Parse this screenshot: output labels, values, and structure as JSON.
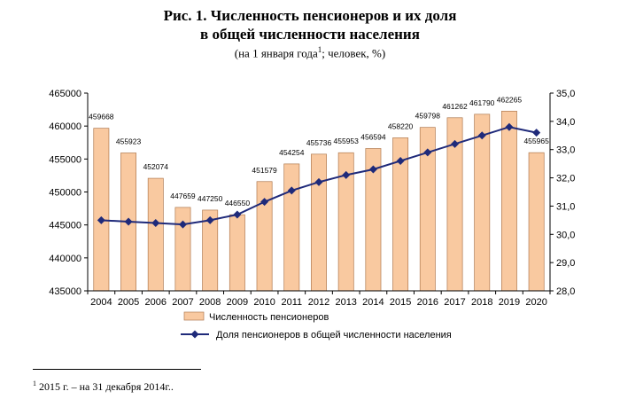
{
  "title_line1": "Рис. 1. Численность пенсионеров и их доля",
  "title_line2": "в общей численности населения",
  "subtitle_pre": "(на 1 января года",
  "subtitle_sup": "1",
  "subtitle_post": "; человек, %)",
  "footnote_sup": "1",
  "footnote_text": " 2015 г. – на 31 декабря 2014г..",
  "colors": {
    "bar_fill": "#f9c9a0",
    "bar_stroke": "#b07a50",
    "line": "#1f2a7a"
  },
  "chart_data": {
    "type": "bar+line",
    "categories": [
      "2004",
      "2005",
      "2006",
      "2007",
      "2008",
      "2009",
      "2010",
      "2011",
      "2012",
      "2013",
      "2014",
      "2015",
      "2016",
      "2017",
      "2018",
      "2019",
      "2020"
    ],
    "series": [
      {
        "name": "Численность пенсионеров",
        "type": "bar",
        "axis": "left",
        "values": [
          459668,
          455923,
          452074,
          447659,
          447250,
          446550,
          451579,
          454254,
          455736,
          455953,
          456594,
          458220,
          459798,
          461262,
          461790,
          462265,
          455965
        ],
        "labels": [
          "459668",
          "455923",
          "452074",
          "447659",
          "447250",
          "446550",
          "451579",
          "454254",
          "455736",
          "455953",
          "456594",
          "458220",
          "459798",
          "461262",
          "461790",
          "462265",
          "455965"
        ]
      },
      {
        "name": "Доля пенсионеров в общей численности населения",
        "type": "line",
        "axis": "right",
        "values": [
          30.5,
          30.45,
          30.4,
          30.35,
          30.5,
          30.7,
          31.15,
          31.55,
          31.85,
          32.1,
          32.3,
          32.6,
          32.9,
          33.2,
          33.5,
          33.8,
          33.6
        ]
      }
    ],
    "y_left": {
      "min": 435000,
      "max": 465000,
      "step": 5000,
      "ticks": [
        "435000",
        "440000",
        "445000",
        "450000",
        "455000",
        "460000",
        "465000"
      ]
    },
    "y_right": {
      "min": 28.0,
      "max": 35.0,
      "step": 1.0,
      "ticks": [
        "28,0",
        "29,0",
        "30,0",
        "31,0",
        "32,0",
        "33,0",
        "34,0",
        "35,0"
      ]
    },
    "legend": {
      "placement": "bottom",
      "items": [
        "Численность пенсионеров",
        "Доля пенсионеров в общей численности населения"
      ]
    },
    "grid": false
  }
}
